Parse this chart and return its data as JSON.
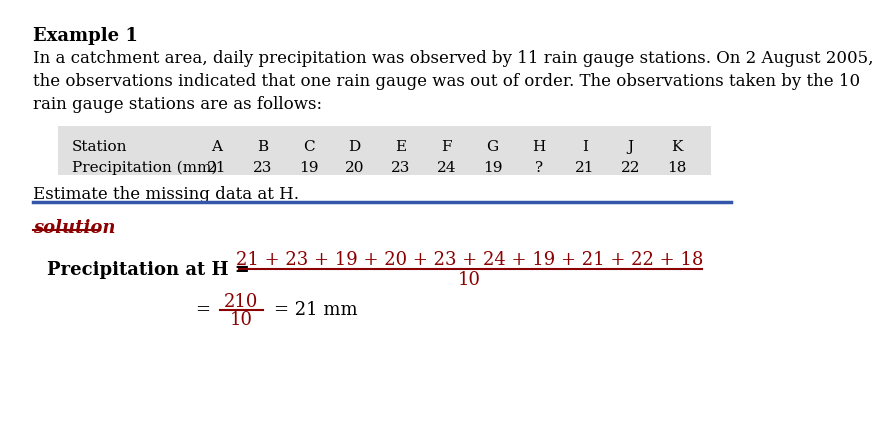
{
  "title": "Example 1",
  "paragraph_lines": [
    "In a catchment area, daily precipitation was observed by 11 rain gauge stations. On 2 August 2005,",
    "the observations indicated that one rain gauge was out of order. The observations taken by the 10",
    "rain gauge stations are as follows:"
  ],
  "estimate_text": "Estimate the missing data at H.",
  "solution_text": "solution",
  "table_stations": [
    "Station",
    "A",
    "B",
    "C",
    "D",
    "E",
    "F",
    "G",
    "H",
    "I",
    "J",
    "K"
  ],
  "table_precip_label": "Precipitation (mm)",
  "table_values": [
    "21",
    "23",
    "19",
    "20",
    "23",
    "24",
    "19",
    "?",
    "21",
    "22",
    "18"
  ],
  "table_bg": "#e0e0e0",
  "divider_color": "#3355aa",
  "formula_color": "#8B0000",
  "label_color": "#000000",
  "background_color": "#ffffff",
  "formula_numerator": "21 + 23 + 19 + 20 + 23 + 24 + 19 + 21 + 22 + 18",
  "formula_denominator": "10",
  "formula_result": "210",
  "formula_result_denom": "10",
  "formula_final": "= 21 mm"
}
